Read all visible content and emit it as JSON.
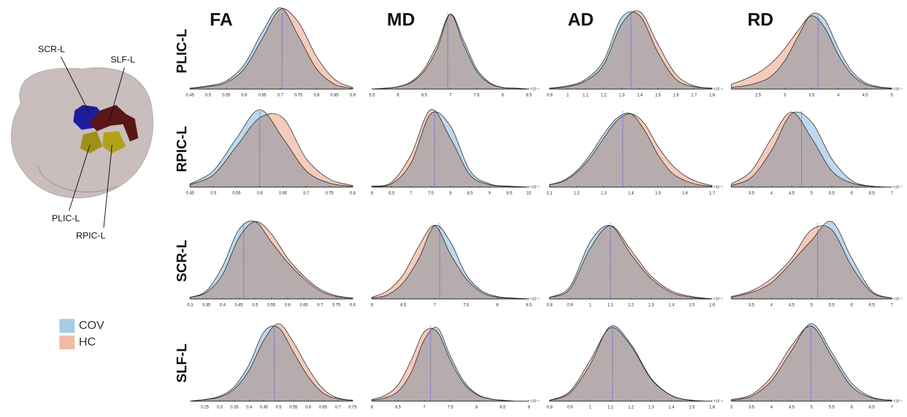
{
  "column_titles": [
    "FA",
    "MD",
    "AD",
    "RD"
  ],
  "row_titles": [
    "PLIC-L",
    "RPIC-L",
    "SCR-L",
    "SLF-L"
  ],
  "brain_labels": [
    "SCR-L",
    "SLF-L",
    "PLIC-L",
    "RPIC-L"
  ],
  "chart_data": [
    {
      "type": "area",
      "xlim": [
        0.45,
        0.9
      ],
      "xticks": [
        0.45,
        0.5,
        0.55,
        0.6,
        0.65,
        0.7,
        0.75,
        0.8,
        0.85,
        0.9
      ],
      "ylim": [
        0,
        1
      ],
      "vline": 0.705,
      "vline_color": "#5a4fcf",
      "x": [
        0.45,
        0.5,
        0.55,
        0.6,
        0.65,
        0.7,
        0.75,
        0.8,
        0.85,
        0.9
      ],
      "series": [
        {
          "name": "COV",
          "color": "#a8cbe6",
          "values": [
            0.01,
            0.04,
            0.1,
            0.3,
            0.7,
            1.0,
            0.65,
            0.25,
            0.06,
            0.01
          ]
        },
        {
          "name": "HC",
          "color": "#f2b9a4",
          "values": [
            0.01,
            0.03,
            0.08,
            0.25,
            0.62,
            0.98,
            0.82,
            0.4,
            0.12,
            0.02
          ]
        }
      ]
    },
    {
      "type": "area",
      "xlim": [
        5.5,
        8.5
      ],
      "xticks": [
        5.5,
        6,
        6.5,
        7,
        7.5,
        8,
        8.5
      ],
      "ylim": [
        0,
        1
      ],
      "vline": 6.95,
      "vline_color": "#5a4fcf",
      "x_multiplier": "×10⁻⁴",
      "x": [
        5.5,
        5.75,
        6,
        6.25,
        6.5,
        6.75,
        7,
        7.25,
        7.5,
        7.75,
        8,
        8.25,
        8.5
      ],
      "series": [
        {
          "name": "COV",
          "color": "#a8cbe6",
          "values": [
            0,
            0.01,
            0.03,
            0.08,
            0.22,
            0.5,
            0.92,
            0.6,
            0.25,
            0.08,
            0.02,
            0.01,
            0
          ]
        },
        {
          "name": "HC",
          "color": "#f2b9a4",
          "values": [
            0,
            0.01,
            0.03,
            0.09,
            0.25,
            0.55,
            0.92,
            0.55,
            0.22,
            0.07,
            0.02,
            0.01,
            0
          ]
        }
      ]
    },
    {
      "type": "area",
      "xlim": [
        0.9,
        1.8
      ],
      "xticks": [
        0.9,
        1,
        1.1,
        1.2,
        1.3,
        1.4,
        1.5,
        1.6,
        1.7,
        1.8
      ],
      "ylim": [
        0,
        1
      ],
      "vline": 1.35,
      "vline_color": "#5a4fcf",
      "x_multiplier": "×10⁻³",
      "x": [
        0.9,
        1,
        1.1,
        1.2,
        1.3,
        1.4,
        1.5,
        1.6,
        1.7,
        1.8
      ],
      "series": [
        {
          "name": "COV",
          "color": "#a8cbe6",
          "values": [
            0.01,
            0.04,
            0.12,
            0.35,
            0.88,
            0.9,
            0.45,
            0.12,
            0.03,
            0.01
          ]
        },
        {
          "name": "HC",
          "color": "#f2b9a4",
          "values": [
            0.01,
            0.03,
            0.1,
            0.3,
            0.8,
            0.95,
            0.55,
            0.18,
            0.04,
            0.01
          ]
        }
      ]
    },
    {
      "type": "area",
      "xlim": [
        2,
        5
      ],
      "xticks": [
        2.5,
        3,
        3.5,
        4,
        4.5,
        5
      ],
      "ylim": [
        0,
        1
      ],
      "vline": 3.62,
      "vline_color": "#5a4fcf",
      "x_multiplier": "×10⁻⁴",
      "x": [
        2,
        2.25,
        2.5,
        2.75,
        3,
        3.25,
        3.5,
        3.75,
        4,
        4.25,
        4.5,
        4.75,
        5
      ],
      "series": [
        {
          "name": "COV",
          "color": "#a8cbe6",
          "values": [
            0.02,
            0.04,
            0.08,
            0.16,
            0.35,
            0.65,
            0.92,
            0.85,
            0.5,
            0.22,
            0.08,
            0.03,
            0.01
          ]
        },
        {
          "name": "HC",
          "color": "#f2b9a4",
          "values": [
            0.06,
            0.12,
            0.2,
            0.32,
            0.5,
            0.72,
            0.9,
            0.75,
            0.42,
            0.18,
            0.06,
            0.02,
            0.01
          ]
        }
      ]
    },
    {
      "type": "area",
      "xlim": [
        0.45,
        0.8
      ],
      "xticks": [
        0.45,
        0.5,
        0.55,
        0.6,
        0.65,
        0.7,
        0.75,
        0.8
      ],
      "ylim": [
        0,
        1
      ],
      "vline": 0.6,
      "vline_color": "#5a4fcf",
      "x": [
        0.45,
        0.5,
        0.55,
        0.6,
        0.65,
        0.7,
        0.75,
        0.8
      ],
      "series": [
        {
          "name": "COV",
          "color": "#a8cbe6",
          "values": [
            0.04,
            0.2,
            0.6,
            0.95,
            0.6,
            0.2,
            0.05,
            0.01
          ]
        },
        {
          "name": "HC",
          "color": "#f2b9a4",
          "values": [
            0.03,
            0.15,
            0.5,
            0.85,
            0.85,
            0.35,
            0.1,
            0.02
          ]
        }
      ]
    },
    {
      "type": "area",
      "xlim": [
        6,
        10
      ],
      "xticks": [
        6,
        6.5,
        7,
        7.5,
        8,
        8.5,
        9,
        9.5,
        10
      ],
      "ylim": [
        0,
        1
      ],
      "vline": 7.6,
      "vline_color": "#5a4fcf",
      "x_multiplier": "×10⁻⁴",
      "x": [
        6,
        6.5,
        7,
        7.5,
        8,
        8.5,
        9,
        9.5,
        10
      ],
      "series": [
        {
          "name": "COV",
          "color": "#a8cbe6",
          "values": [
            0.01,
            0.04,
            0.3,
            0.9,
            0.75,
            0.2,
            0.04,
            0.01,
            0
          ]
        },
        {
          "name": "HC",
          "color": "#f2b9a4",
          "values": [
            0.01,
            0.06,
            0.4,
            0.95,
            0.6,
            0.15,
            0.03,
            0.01,
            0
          ]
        }
      ]
    },
    {
      "type": "area",
      "xlim": [
        1.1,
        1.7
      ],
      "xticks": [
        1.1,
        1.2,
        1.3,
        1.4,
        1.5,
        1.6,
        1.7
      ],
      "ylim": [
        0,
        1
      ],
      "vline": 1.37,
      "vline_color": "#5a4fcf",
      "x_multiplier": "×10⁻³",
      "x": [
        1.1,
        1.15,
        1.2,
        1.25,
        1.3,
        1.35,
        1.4,
        1.45,
        1.5,
        1.55,
        1.6,
        1.65,
        1.7
      ],
      "series": [
        {
          "name": "COV",
          "color": "#a8cbe6",
          "values": [
            0.03,
            0.08,
            0.2,
            0.4,
            0.65,
            0.85,
            0.9,
            0.7,
            0.4,
            0.18,
            0.08,
            0.03,
            0.01
          ]
        },
        {
          "name": "HC",
          "color": "#f2b9a4",
          "values": [
            0.03,
            0.07,
            0.18,
            0.36,
            0.6,
            0.82,
            0.9,
            0.78,
            0.5,
            0.28,
            0.14,
            0.06,
            0.02
          ]
        }
      ]
    },
    {
      "type": "area",
      "xlim": [
        3,
        7
      ],
      "xticks": [
        3.5,
        4,
        4.5,
        5,
        5.5,
        6,
        6.5,
        7
      ],
      "ylim": [
        0,
        1
      ],
      "vline": 4.75,
      "vline_color": "#5a4fcf",
      "x_multiplier": "×10⁻⁴",
      "x": [
        3,
        3.5,
        4,
        4.5,
        5,
        5.5,
        6,
        6.5,
        7
      ],
      "series": [
        {
          "name": "COV",
          "color": "#a8cbe6",
          "values": [
            0.02,
            0.12,
            0.45,
            0.9,
            0.8,
            0.35,
            0.08,
            0.01,
            0
          ]
        },
        {
          "name": "HC",
          "color": "#f2b9a4",
          "values": [
            0.04,
            0.2,
            0.6,
            0.92,
            0.6,
            0.2,
            0.05,
            0.01,
            0
          ]
        }
      ]
    },
    {
      "type": "area",
      "xlim": [
        0.3,
        0.8
      ],
      "xticks": [
        0.3,
        0.35,
        0.4,
        0.45,
        0.5,
        0.55,
        0.6,
        0.65,
        0.7,
        0.75,
        0.8
      ],
      "ylim": [
        0,
        1
      ],
      "vline": 0.465,
      "vline_color": "#5a4fcf",
      "x": [
        0.3,
        0.35,
        0.4,
        0.45,
        0.5,
        0.55,
        0.6,
        0.65,
        0.7,
        0.75,
        0.8
      ],
      "series": [
        {
          "name": "COV",
          "color": "#a8cbe6",
          "values": [
            0.02,
            0.1,
            0.4,
            0.85,
            0.95,
            0.7,
            0.45,
            0.25,
            0.1,
            0.03,
            0.01
          ]
        },
        {
          "name": "HC",
          "color": "#f2b9a4",
          "values": [
            0.02,
            0.08,
            0.3,
            0.75,
            0.95,
            0.8,
            0.5,
            0.28,
            0.12,
            0.04,
            0.01
          ]
        }
      ]
    },
    {
      "type": "area",
      "xlim": [
        6,
        8.5
      ],
      "xticks": [
        6,
        6.5,
        7,
        7.5,
        8,
        8.5
      ],
      "ylim": [
        0,
        1
      ],
      "vline": 7.08,
      "vline_color": "#5a4fcf",
      "x_multiplier": "×10⁻⁴",
      "x": [
        6,
        6.25,
        6.5,
        6.75,
        7,
        7.25,
        7.5,
        7.75,
        8,
        8.25,
        8.5
      ],
      "series": [
        {
          "name": "COV",
          "color": "#a8cbe6",
          "values": [
            0.01,
            0.05,
            0.2,
            0.5,
            0.9,
            0.7,
            0.3,
            0.1,
            0.03,
            0.01,
            0
          ]
        },
        {
          "name": "HC",
          "color": "#f2b9a4",
          "values": [
            0.02,
            0.1,
            0.3,
            0.65,
            0.9,
            0.55,
            0.25,
            0.08,
            0.02,
            0.01,
            0
          ]
        }
      ]
    },
    {
      "type": "area",
      "xlim": [
        0.8,
        1.6
      ],
      "xticks": [
        0.8,
        0.9,
        1,
        1.1,
        1.2,
        1.3,
        1.4,
        1.5,
        1.6
      ],
      "ylim": [
        0,
        1
      ],
      "vline": 1.1,
      "vline_color": "#5a4fcf",
      "x_multiplier": "×10⁻³",
      "x": [
        0.8,
        0.9,
        1,
        1.1,
        1.2,
        1.3,
        1.4,
        1.5,
        1.6
      ],
      "series": [
        {
          "name": "COV",
          "color": "#a8cbe6",
          "values": [
            0.02,
            0.15,
            0.7,
            0.9,
            0.55,
            0.25,
            0.08,
            0.02,
            0
          ]
        },
        {
          "name": "HC",
          "color": "#f2b9a4",
          "values": [
            0.02,
            0.12,
            0.62,
            0.9,
            0.6,
            0.28,
            0.1,
            0.03,
            0
          ]
        }
      ]
    },
    {
      "type": "area",
      "xlim": [
        3,
        7
      ],
      "xticks": [
        3.5,
        4,
        4.5,
        5,
        5.5,
        6,
        6.5,
        7
      ],
      "ylim": [
        0,
        1
      ],
      "vline": 5.15,
      "vline_color": "#5a4fcf",
      "x_multiplier": "×10⁻⁴",
      "x": [
        3,
        3.5,
        4,
        4.5,
        5,
        5.5,
        6,
        6.5,
        7
      ],
      "series": [
        {
          "name": "COV",
          "color": "#a8cbe6",
          "values": [
            0.02,
            0.08,
            0.2,
            0.45,
            0.72,
            0.95,
            0.5,
            0.1,
            0.01
          ]
        },
        {
          "name": "HC",
          "color": "#f2b9a4",
          "values": [
            0.03,
            0.1,
            0.25,
            0.5,
            0.85,
            0.85,
            0.4,
            0.08,
            0.01
          ]
        }
      ]
    },
    {
      "type": "area",
      "xlim": [
        0.2,
        0.75
      ],
      "xticks": [
        0.25,
        0.3,
        0.35,
        0.4,
        0.45,
        0.5,
        0.55,
        0.6,
        0.65,
        0.7,
        0.75
      ],
      "ylim": [
        0,
        1
      ],
      "vline": 0.485,
      "vline_color": "#5a4fcf",
      "x": [
        0.2,
        0.25,
        0.3,
        0.35,
        0.4,
        0.45,
        0.5,
        0.55,
        0.6,
        0.65,
        0.7,
        0.75
      ],
      "series": [
        {
          "name": "COV",
          "color": "#a8cbe6",
          "values": [
            0,
            0.02,
            0.06,
            0.18,
            0.45,
            0.85,
            0.9,
            0.6,
            0.3,
            0.1,
            0.03,
            0.01
          ]
        },
        {
          "name": "HC",
          "color": "#f2b9a4",
          "values": [
            0,
            0.02,
            0.05,
            0.15,
            0.38,
            0.75,
            0.95,
            0.72,
            0.4,
            0.15,
            0.04,
            0.01
          ]
        }
      ]
    },
    {
      "type": "area",
      "xlim": [
        6,
        9
      ],
      "xticks": [
        6,
        6.5,
        7,
        7.5,
        8,
        8.5,
        9
      ],
      "ylim": [
        0,
        1
      ],
      "vline": 7.12,
      "vline_color": "#5a4fcf",
      "x_multiplier": "×10⁻⁴",
      "x": [
        6,
        6.25,
        6.5,
        6.75,
        7,
        7.25,
        7.5,
        7.75,
        8,
        8.25,
        8.5,
        8.75,
        9
      ],
      "series": [
        {
          "name": "COV",
          "color": "#a8cbe6",
          "values": [
            0.01,
            0.04,
            0.12,
            0.35,
            0.75,
            0.9,
            0.55,
            0.25,
            0.09,
            0.03,
            0.01,
            0,
            0
          ]
        },
        {
          "name": "HC",
          "color": "#f2b9a4",
          "values": [
            0.02,
            0.07,
            0.2,
            0.5,
            0.85,
            0.85,
            0.5,
            0.22,
            0.08,
            0.03,
            0.01,
            0,
            0
          ]
        }
      ]
    },
    {
      "type": "area",
      "xlim": [
        0.8,
        1.6
      ],
      "xticks": [
        0.8,
        0.9,
        1,
        1.1,
        1.2,
        1.3,
        1.4,
        1.5,
        1.6
      ],
      "ylim": [
        0,
        1
      ],
      "vline": 1.11,
      "vline_color": "#5a4fcf",
      "x_multiplier": "×10⁻³",
      "x": [
        0.8,
        0.9,
        1,
        1.1,
        1.2,
        1.3,
        1.4,
        1.5,
        1.6
      ],
      "series": [
        {
          "name": "COV",
          "color": "#a8cbe6",
          "values": [
            0.01,
            0.1,
            0.45,
            0.92,
            0.7,
            0.28,
            0.07,
            0.01,
            0
          ]
        },
        {
          "name": "HC",
          "color": "#f2b9a4",
          "values": [
            0.01,
            0.12,
            0.5,
            0.9,
            0.68,
            0.27,
            0.07,
            0.01,
            0
          ]
        }
      ]
    },
    {
      "type": "area",
      "xlim": [
        3,
        7
      ],
      "xticks": [
        3,
        3.5,
        4,
        4.5,
        5,
        5.5,
        6,
        6.5,
        7
      ],
      "ylim": [
        0,
        1
      ],
      "vline": 4.98,
      "vline_color": "#5a4fcf",
      "x_multiplier": "×10⁻⁴",
      "x": [
        3,
        3.5,
        4,
        4.5,
        5,
        5.5,
        6,
        6.5,
        7
      ],
      "series": [
        {
          "name": "COV",
          "color": "#a8cbe6",
          "values": [
            0.01,
            0.06,
            0.25,
            0.62,
            0.95,
            0.6,
            0.22,
            0.05,
            0.01
          ]
        },
        {
          "name": "HC",
          "color": "#f2b9a4",
          "values": [
            0.02,
            0.08,
            0.3,
            0.68,
            0.92,
            0.55,
            0.18,
            0.04,
            0.01
          ]
        }
      ]
    }
  ]
}
